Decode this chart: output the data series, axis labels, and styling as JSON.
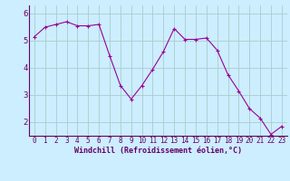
{
  "x": [
    0,
    1,
    2,
    3,
    4,
    5,
    6,
    7,
    8,
    9,
    10,
    11,
    12,
    13,
    14,
    15,
    16,
    17,
    18,
    19,
    20,
    21,
    22,
    23
  ],
  "y": [
    5.15,
    5.5,
    5.6,
    5.7,
    5.55,
    5.55,
    5.6,
    4.45,
    3.35,
    2.85,
    3.35,
    3.95,
    4.6,
    5.45,
    5.05,
    5.05,
    5.1,
    4.65,
    3.75,
    3.15,
    2.5,
    2.15,
    1.55,
    1.85
  ],
  "color": "#990099",
  "marker": "+",
  "bg_color": "#cceeff",
  "grid_color": "#aacccc",
  "xlabel": "Windchill (Refroidissement éolien,°C)",
  "xlim": [
    -0.5,
    23.5
  ],
  "ylim": [
    1.5,
    6.3
  ],
  "yticks": [
    2,
    3,
    4,
    5,
    6
  ],
  "xticks": [
    0,
    1,
    2,
    3,
    4,
    5,
    6,
    7,
    8,
    9,
    10,
    11,
    12,
    13,
    14,
    15,
    16,
    17,
    18,
    19,
    20,
    21,
    22,
    23
  ],
  "axis_color": "#660066",
  "linewidth": 0.8,
  "markersize": 3,
  "markeredgewidth": 0.8,
  "tick_fontsize": 5.5,
  "xlabel_fontsize": 6.0
}
